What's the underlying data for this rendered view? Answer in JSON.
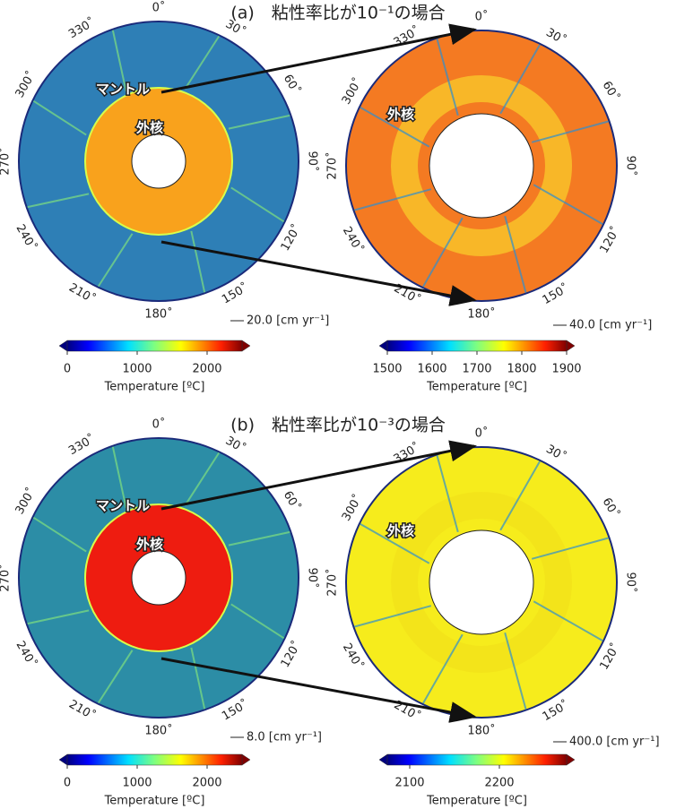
{
  "angles": [
    "0˚",
    "30˚",
    "60˚",
    "90˚",
    "120˚",
    "150˚",
    "180˚",
    "210˚",
    "240˚",
    "270˚",
    "300˚",
    "330˚"
  ],
  "panels": [
    {
      "title": "(a)　粘性率比が10⁻¹の場合",
      "left": {
        "mantle_label": "マントル",
        "core_label": "外核",
        "scale": "20.0 [cm yr⁻¹]",
        "colorbar": {
          "range": [
            0,
            2500
          ],
          "ticks": [
            0,
            1000,
            2000
          ],
          "label": "Temperature [ºC]"
        }
      },
      "right": {
        "core_label": "外核",
        "scale": "40.0 [cm yr⁻¹]",
        "colorbar": {
          "range": [
            1500,
            1900
          ],
          "ticks": [
            1500,
            1600,
            1700,
            1800,
            1900
          ],
          "label": "Temperature [ºC]"
        }
      }
    },
    {
      "title": "(b)　粘性率比が10⁻³の場合",
      "left": {
        "mantle_label": "マントル",
        "core_label": "外核",
        "scale": "8.0 [cm yr⁻¹]",
        "colorbar": {
          "range": [
            0,
            2500
          ],
          "ticks": [
            0,
            1000,
            2000
          ],
          "label": "Temperature [ºC]"
        }
      },
      "right": {
        "core_label": "外核",
        "scale": "400.0 [cm yr⁻¹]",
        "colorbar": {
          "range": [
            2075,
            2275
          ],
          "ticks": [
            2100,
            2200
          ],
          "label": "Temperature [ºC]"
        }
      }
    }
  ]
}
